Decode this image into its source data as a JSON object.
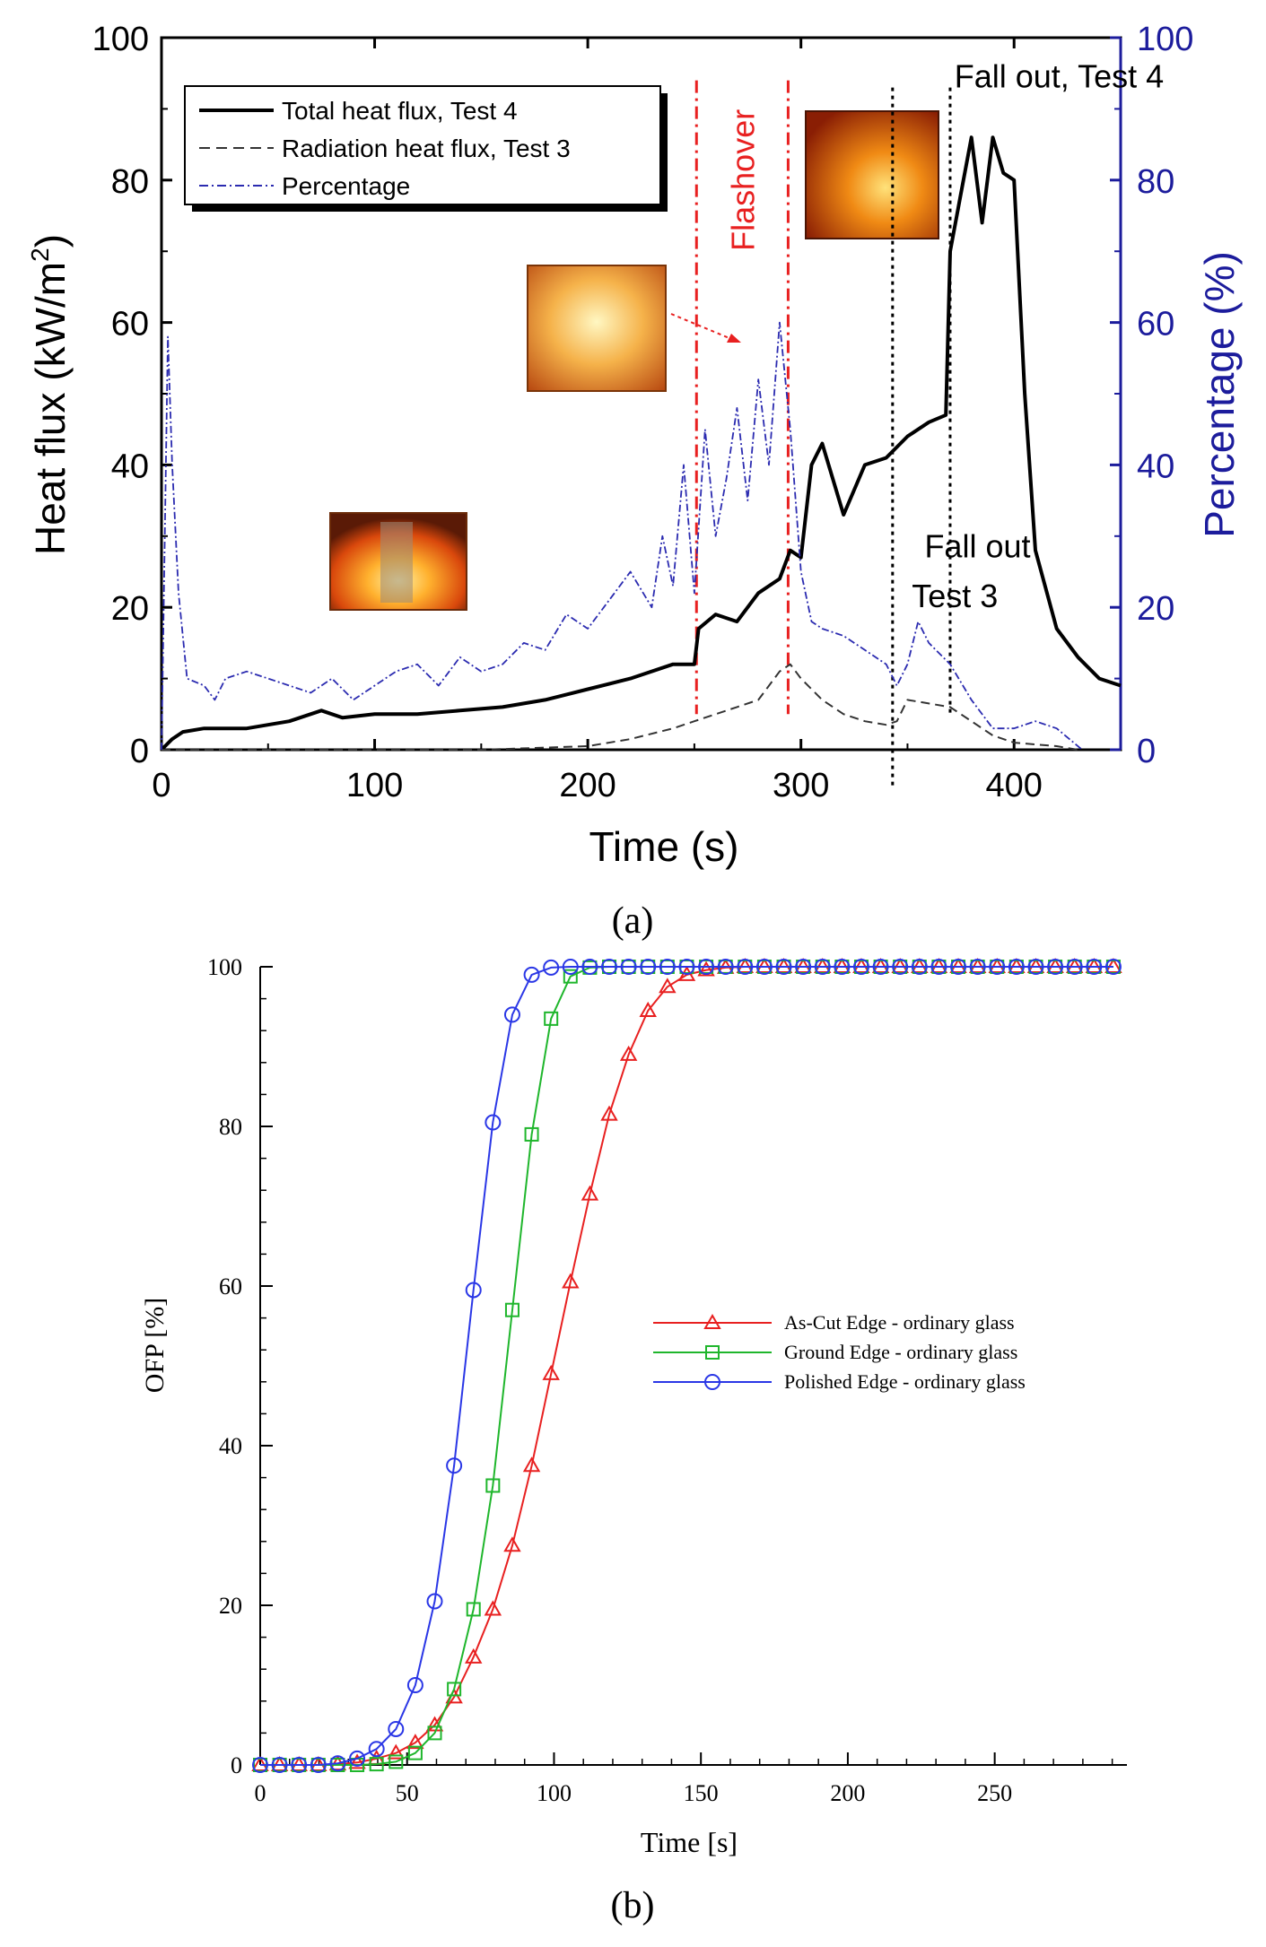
{
  "panel_a": {
    "label": "(a)",
    "chart_data": {
      "type": "line",
      "xlabel": "Time (s)",
      "ylabel": "Heat flux (kW/m",
      "ylabel_sup": "2",
      "ylabel_close": ")",
      "y2label": "Percentage (%)",
      "xlim": [
        0,
        450
      ],
      "ylim": [
        0,
        100
      ],
      "y2lim": [
        0,
        100
      ],
      "xticks": [
        "0",
        "100",
        "200",
        "300",
        "400"
      ],
      "yticks": [
        "0",
        "20",
        "40",
        "60",
        "80",
        "100"
      ],
      "y2ticks": [
        "0",
        "20",
        "40",
        "60",
        "80",
        "100"
      ],
      "legend": [
        "Total heat flux, Test 4",
        "Radiation heat flux, Test 3",
        "Percentage"
      ],
      "legend_position": "top-left",
      "series": [
        {
          "name": "Total heat flux, Test 4",
          "color": "#000000",
          "style": "solid",
          "x": [
            0,
            5,
            10,
            20,
            40,
            60,
            75,
            85,
            100,
            120,
            140,
            160,
            180,
            200,
            220,
            240,
            250,
            252,
            260,
            270,
            280,
            290,
            295,
            300,
            305,
            310,
            320,
            330,
            340,
            350,
            360,
            368,
            370,
            375,
            380,
            385,
            390,
            395,
            400,
            405,
            410,
            420,
            430,
            440,
            450
          ],
          "y": [
            0,
            1.5,
            2.5,
            3,
            3,
            4,
            5.5,
            4.5,
            5,
            5,
            5.5,
            6,
            7,
            8.5,
            10,
            12,
            12,
            17,
            19,
            18,
            22,
            24,
            28,
            27,
            40,
            43,
            33,
            40,
            41,
            44,
            46,
            47,
            70,
            78,
            86,
            74,
            86,
            81,
            80,
            50,
            28,
            17,
            13,
            10,
            9
          ]
        },
        {
          "name": "Radiation heat flux, Test 3",
          "color": "#333333",
          "style": "dashed",
          "x": [
            0,
            50,
            100,
            150,
            200,
            220,
            240,
            250,
            260,
            270,
            280,
            290,
            295,
            300,
            310,
            320,
            330,
            340,
            345,
            350,
            360,
            370,
            380,
            390,
            400,
            420,
            430
          ],
          "y": [
            0,
            0,
            0,
            0,
            0.5,
            1.5,
            3,
            4,
            5,
            6,
            7,
            11,
            12,
            10,
            7,
            5,
            4,
            3.5,
            4,
            7,
            6.5,
            6,
            4,
            2,
            1,
            0.5,
            0
          ]
        },
        {
          "name": "Percentage",
          "color": "#2b2bb0",
          "style": "dashdot",
          "axis": "right",
          "x": [
            0,
            3,
            5,
            8,
            12,
            20,
            25,
            30,
            40,
            50,
            60,
            70,
            80,
            90,
            100,
            110,
            120,
            130,
            140,
            150,
            160,
            170,
            180,
            190,
            200,
            210,
            220,
            230,
            235,
            240,
            245,
            250,
            255,
            260,
            265,
            270,
            275,
            280,
            285,
            290,
            295,
            300,
            305,
            310,
            320,
            330,
            340,
            345,
            350,
            355,
            360,
            370,
            380,
            390,
            400,
            410,
            420,
            432
          ],
          "y": [
            0,
            58,
            40,
            22,
            10,
            9,
            7,
            10,
            11,
            10,
            9,
            8,
            10,
            7,
            9,
            11,
            12,
            9,
            13,
            11,
            12,
            15,
            14,
            19,
            17,
            21,
            25,
            20,
            30,
            23,
            40,
            22,
            45,
            30,
            38,
            48,
            35,
            52,
            40,
            60,
            45,
            25,
            18,
            17,
            16,
            14,
            12,
            9,
            12,
            18,
            15,
            12,
            7,
            3,
            3,
            4,
            3,
            0
          ]
        }
      ],
      "annotations": [
        {
          "text": "Flashover",
          "x": 278,
          "y": 80,
          "color": "#e82020"
        },
        {
          "text": "Fall out, Test 4",
          "x": 372,
          "y": 93
        },
        {
          "text": "Fall out",
          "x": 358,
          "y": 27
        },
        {
          "text": "Test 3",
          "x": 352,
          "y": 20
        }
      ],
      "vlines": [
        {
          "x": 251,
          "color": "#e82020",
          "style": "dashdot"
        },
        {
          "x": 294,
          "color": "#e82020",
          "style": "dashdot"
        },
        {
          "x": 343,
          "color": "#000000",
          "style": "dotted"
        },
        {
          "x": 370,
          "color": "#000000",
          "style": "dotted"
        }
      ]
    }
  },
  "panel_b": {
    "label": "(b)",
    "chart_data": {
      "type": "line",
      "xlabel": "Time [s]",
      "ylabel": "OFP [%]",
      "xlim": [
        0,
        295
      ],
      "ylim": [
        0,
        100
      ],
      "xticks": [
        "0",
        "50",
        "100",
        "150",
        "200",
        "250"
      ],
      "yticks": [
        "0",
        "20",
        "40",
        "60",
        "80",
        "100"
      ],
      "legend": [
        "As-Cut Edge - ordinary glass",
        "Ground Edge - ordinary glass",
        "Polished Edge - ordinary glass"
      ],
      "legend_position": "center-right",
      "x": [
        0,
        6.6,
        13.2,
        19.8,
        26.4,
        33,
        39.6,
        46.2,
        52.8,
        59.4,
        66,
        72.6,
        79.2,
        85.8,
        92.4,
        99,
        105.6,
        112.2,
        118.8,
        125.4,
        132,
        138.6,
        145.2,
        151.8,
        158.4,
        165,
        171.6,
        178.2,
        184.8,
        191.4,
        198,
        204.6,
        211.2,
        217.8,
        224.4,
        231,
        237.6,
        244.2,
        250.8,
        257.4,
        264,
        270.6,
        277.2,
        283.8,
        290.4
      ],
      "series": [
        {
          "name": "As-Cut Edge - ordinary glass",
          "color": "#e82020",
          "marker": "triangle",
          "values": [
            0,
            0,
            0,
            0,
            0.1,
            0.3,
            0.8,
            1.5,
            2.8,
            5,
            8.5,
            13.5,
            19.5,
            27.5,
            37.5,
            49,
            60.5,
            71.5,
            81.5,
            89,
            94.5,
            97.5,
            99,
            99.6,
            99.9,
            100,
            100,
            100,
            100,
            100,
            100,
            100,
            100,
            100,
            100,
            100,
            100,
            100,
            100,
            100,
            100,
            100,
            100,
            100,
            100
          ]
        },
        {
          "name": "Ground Edge - ordinary glass",
          "color": "#1fb62c",
          "marker": "square",
          "values": [
            0,
            0,
            0,
            0,
            0,
            0,
            0.1,
            0.4,
            1.5,
            4,
            9.5,
            19.5,
            35,
            57,
            79,
            93.5,
            98.8,
            99.9,
            100,
            100,
            100,
            100,
            100,
            100,
            100,
            100,
            100,
            100,
            100,
            100,
            100,
            100,
            100,
            100,
            100,
            100,
            100,
            100,
            100,
            100,
            100,
            100,
            100,
            100,
            100
          ]
        },
        {
          "name": "Polished Edge - ordinary glass",
          "color": "#2a37e6",
          "marker": "circle",
          "values": [
            0,
            0,
            0,
            0,
            0.2,
            0.8,
            2,
            4.5,
            10,
            20.5,
            37.5,
            59.5,
            80.5,
            94,
            99,
            99.9,
            100,
            100,
            100,
            100,
            100,
            100,
            100,
            100,
            100,
            100,
            100,
            100,
            100,
            100,
            100,
            100,
            100,
            100,
            100,
            100,
            100,
            100,
            100,
            100,
            100,
            100,
            100,
            100,
            100
          ]
        }
      ]
    }
  },
  "colors": {
    "axis": "#000000",
    "right_axis": "#1c1c9c",
    "flashover": "#e82020",
    "fire_dark": "#5a1a06",
    "fire_mid": "#e8620e",
    "fire_bright": "#ffd36a"
  }
}
